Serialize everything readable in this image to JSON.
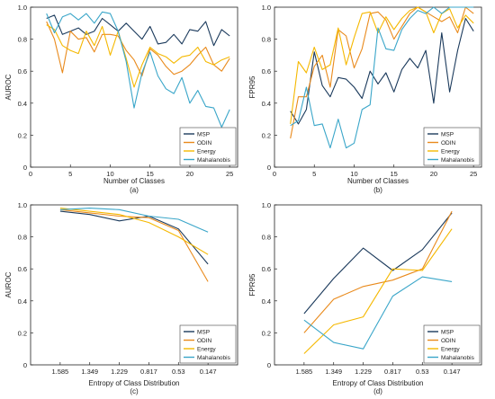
{
  "colors": {
    "MSP": "#1b3a5c",
    "ODIN": "#e98a1c",
    "Energy": "#f5b800",
    "Mahalanobis": "#3aa6c9"
  },
  "chart_data": [
    {
      "type": "line",
      "caption": "(a)",
      "xlabel": "Number of Classes",
      "ylabel": "AUROC",
      "xlim": [
        0,
        26
      ],
      "ylim": [
        0,
        1.0
      ],
      "xticks": [
        0,
        5,
        10,
        15,
        20,
        25
      ],
      "yticks": [
        0,
        0.2,
        0.4,
        0.6,
        0.8,
        1.0
      ],
      "ytick_labels": [
        "0",
        "0.2",
        "0.4",
        "0.6",
        "0.8",
        "1.0"
      ],
      "categorical_x": false,
      "legend_position": "bottom-right",
      "x": [
        2,
        3,
        4,
        5,
        6,
        7,
        8,
        9,
        10,
        11,
        12,
        13,
        14,
        15,
        16,
        17,
        18,
        19,
        20,
        21,
        22,
        23,
        24,
        25
      ],
      "series": [
        {
          "name": "MSP",
          "values": [
            0.93,
            0.95,
            0.83,
            0.85,
            0.87,
            0.83,
            0.85,
            0.93,
            0.89,
            0.85,
            0.9,
            0.85,
            0.8,
            0.88,
            0.77,
            0.78,
            0.83,
            0.77,
            0.86,
            0.85,
            0.91,
            0.76,
            0.86,
            0.82
          ]
        },
        {
          "name": "ODIN",
          "values": [
            0.91,
            0.8,
            0.59,
            0.85,
            0.8,
            0.81,
            0.72,
            0.83,
            0.83,
            0.82,
            0.73,
            0.67,
            0.57,
            0.74,
            0.7,
            0.63,
            0.58,
            0.6,
            0.64,
            0.7,
            0.75,
            0.64,
            0.6,
            0.68
          ]
        },
        {
          "name": "Energy",
          "values": [
            0.89,
            0.86,
            0.76,
            0.73,
            0.71,
            0.85,
            0.76,
            0.88,
            0.7,
            0.85,
            0.68,
            0.5,
            0.64,
            0.75,
            0.71,
            0.69,
            0.65,
            0.69,
            0.7,
            0.75,
            0.66,
            0.64,
            0.67,
            0.69
          ]
        },
        {
          "name": "Mahalanobis",
          "values": [
            0.96,
            0.84,
            0.94,
            0.96,
            0.92,
            0.96,
            0.9,
            0.97,
            0.96,
            0.85,
            0.66,
            0.37,
            0.59,
            0.72,
            0.57,
            0.49,
            0.46,
            0.56,
            0.4,
            0.48,
            0.38,
            0.37,
            0.25,
            0.36
          ]
        }
      ]
    },
    {
      "type": "line",
      "caption": "(b)",
      "xlabel": "Number of Classes",
      "ylabel": "FPR95",
      "xlim": [
        0,
        26
      ],
      "ylim": [
        0,
        1.0
      ],
      "xticks": [
        0,
        5,
        10,
        15,
        20,
        25
      ],
      "yticks": [
        0,
        0.2,
        0.4,
        0.6,
        0.8,
        1.0
      ],
      "ytick_labels": [
        "0",
        "0.2",
        "0.4",
        "0.6",
        "0.8",
        "1.0"
      ],
      "categorical_x": false,
      "legend_position": "bottom-right",
      "x": [
        2,
        3,
        4,
        5,
        6,
        7,
        8,
        9,
        10,
        11,
        12,
        13,
        14,
        15,
        16,
        17,
        18,
        19,
        20,
        21,
        22,
        23,
        24,
        25
      ],
      "series": [
        {
          "name": "MSP",
          "values": [
            0.35,
            0.27,
            0.36,
            0.72,
            0.51,
            0.44,
            0.56,
            0.55,
            0.5,
            0.43,
            0.6,
            0.52,
            0.59,
            0.47,
            0.61,
            0.68,
            0.62,
            0.73,
            0.4,
            0.84,
            0.47,
            0.73,
            0.93,
            0.85
          ]
        },
        {
          "name": "ODIN",
          "values": [
            0.18,
            0.44,
            0.44,
            0.63,
            0.7,
            0.5,
            0.86,
            0.82,
            0.62,
            0.74,
            0.96,
            0.97,
            0.92,
            0.8,
            0.88,
            0.96,
            1.0,
            0.97,
            0.94,
            0.91,
            0.94,
            0.84,
            1.0,
            0.96
          ]
        },
        {
          "name": "Energy",
          "values": [
            0.27,
            0.66,
            0.59,
            0.75,
            0.61,
            0.64,
            0.87,
            0.64,
            0.81,
            0.96,
            0.97,
            0.84,
            0.94,
            0.86,
            0.93,
            0.98,
            1.0,
            0.97,
            0.84,
            0.96,
            0.99,
            0.87,
            0.95,
            0.9
          ]
        },
        {
          "name": "Mahalanobis",
          "values": [
            0.26,
            0.29,
            0.5,
            0.26,
            0.27,
            0.12,
            0.3,
            0.12,
            0.15,
            0.36,
            0.39,
            0.87,
            0.74,
            0.73,
            0.86,
            0.93,
            0.98,
            0.96,
            1.0,
            0.96,
            1.0,
            1.0,
            1.0,
            1.0
          ]
        }
      ]
    },
    {
      "type": "line",
      "caption": "(c)",
      "xlabel": "Entropy of Class Distribution",
      "ylabel": "AUROC",
      "ylim": [
        0,
        1.0
      ],
      "yticks": [
        0,
        0.2,
        0.4,
        0.6,
        0.8,
        1.0
      ],
      "ytick_labels": [
        "0",
        "0.2",
        "0.4",
        "0.6",
        "0.8",
        "1.0"
      ],
      "categorical_x": true,
      "legend_position": "bottom-right",
      "categories": [
        "1.585",
        "1.349",
        "1.229",
        "0.817",
        "0.53",
        "0.147"
      ],
      "series": [
        {
          "name": "MSP",
          "values": [
            0.96,
            0.94,
            0.9,
            0.93,
            0.85,
            0.63
          ]
        },
        {
          "name": "ODIN",
          "values": [
            0.97,
            0.95,
            0.93,
            0.92,
            0.84,
            0.52
          ]
        },
        {
          "name": "Energy",
          "values": [
            0.98,
            0.96,
            0.94,
            0.89,
            0.8,
            0.69
          ]
        },
        {
          "name": "Mahalanobis",
          "values": [
            0.97,
            0.98,
            0.97,
            0.93,
            0.91,
            0.83
          ]
        }
      ]
    },
    {
      "type": "line",
      "caption": "(d)",
      "xlabel": "Entropy of Class Distribution",
      "ylabel": "FPR95",
      "ylim": [
        0,
        1.0
      ],
      "yticks": [
        0,
        0.2,
        0.4,
        0.6,
        0.8,
        1.0
      ],
      "ytick_labels": [
        "0",
        "0.2",
        "0.4",
        "0.6",
        "0.8",
        "1.0"
      ],
      "categorical_x": true,
      "legend_position": "bottom-right",
      "categories": [
        "1.585",
        "1.349",
        "1.229",
        "0.817",
        "0.53",
        "0.147"
      ],
      "series": [
        {
          "name": "MSP",
          "values": [
            0.32,
            0.54,
            0.73,
            0.59,
            0.72,
            0.95
          ]
        },
        {
          "name": "ODIN",
          "values": [
            0.2,
            0.41,
            0.49,
            0.53,
            0.6,
            0.96
          ]
        },
        {
          "name": "Energy",
          "values": [
            0.07,
            0.25,
            0.3,
            0.6,
            0.59,
            0.85
          ]
        },
        {
          "name": "Mahalanobis",
          "values": [
            0.28,
            0.14,
            0.1,
            0.43,
            0.55,
            0.52
          ]
        }
      ]
    }
  ]
}
